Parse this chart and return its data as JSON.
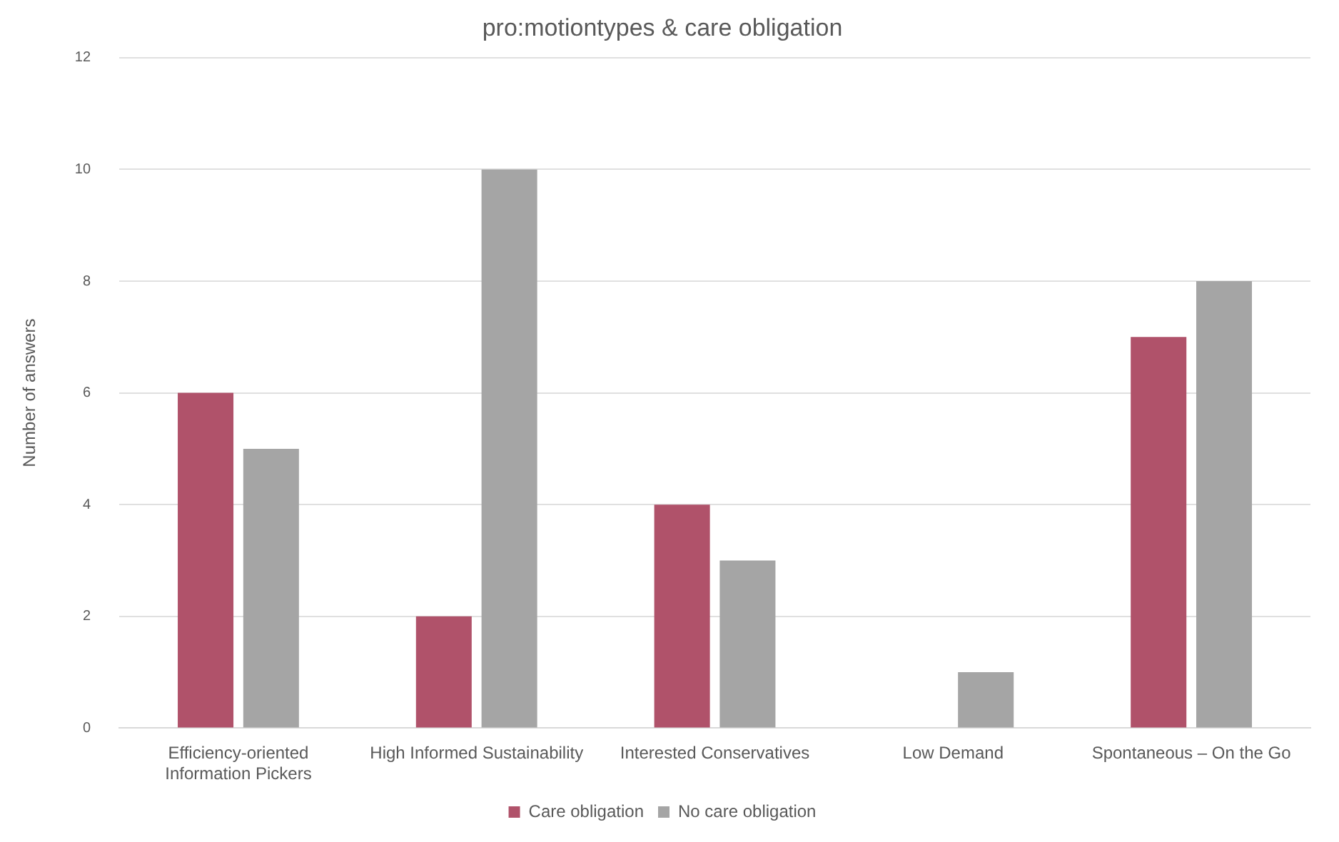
{
  "chart_data": {
    "type": "bar",
    "title": "pro:motiontypes & care obligation",
    "ylabel": "Number of answers",
    "categories": [
      "Efficiency-oriented\nInformation Pickers",
      "High Informed Sustainability",
      "Interested Conservatives",
      "Low Demand",
      "Spontaneous – On the Go"
    ],
    "series": [
      {
        "name": "Care obligation",
        "color": "#b0526a",
        "values": [
          6,
          2,
          4,
          0,
          7
        ]
      },
      {
        "name": "No care obligation",
        "color": "#a5a5a5",
        "values": [
          5,
          10,
          3,
          1,
          8
        ]
      }
    ],
    "ylim": [
      0,
      12
    ],
    "yticks": [
      0,
      2,
      4,
      6,
      8,
      10,
      12
    ],
    "grid": "y",
    "legend": "bottom"
  }
}
